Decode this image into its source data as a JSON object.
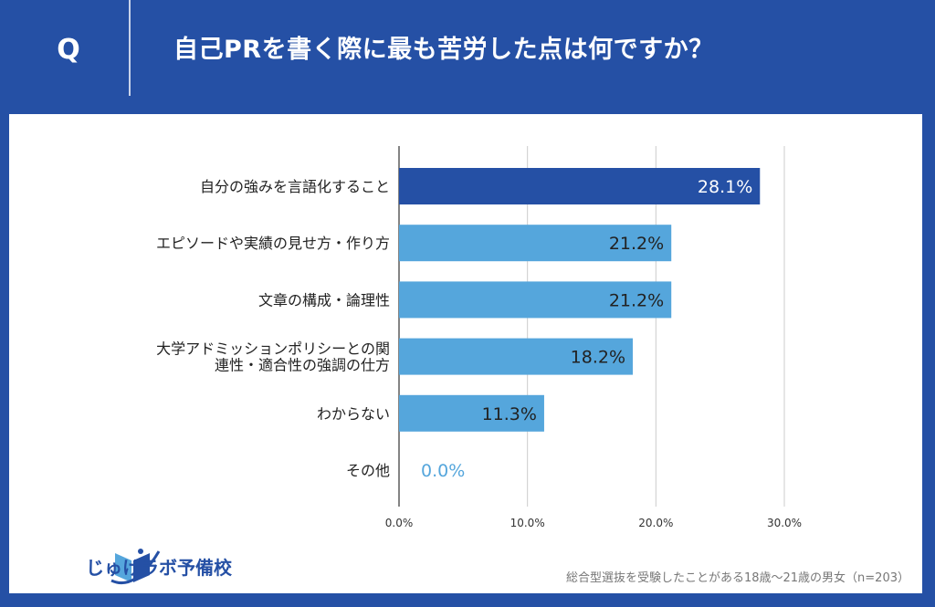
{
  "header": {
    "q_label": "Q",
    "question": "自己PRを書く際に最も苦労した点は何ですか？"
  },
  "chart_data": {
    "type": "bar",
    "orientation": "horizontal",
    "categories": [
      "自分の強みを言語化すること",
      "エピソードや実績の見せ方・作り方",
      "文章の構成・論理性",
      "大学アドミッションポリシーとの関連性・適合性の強調の仕方",
      "わからない",
      "その他"
    ],
    "category_lines": [
      [
        "自分の強みを言語化すること"
      ],
      [
        "エピソードや実績の見せ方・作り方"
      ],
      [
        "文章の構成・論理性"
      ],
      [
        "大学アドミッションポリシーとの関",
        "連性・適合性の強調の仕方"
      ],
      [
        "わからない"
      ],
      [
        "その他"
      ]
    ],
    "values": [
      28.1,
      21.2,
      21.2,
      18.2,
      11.3,
      0.0
    ],
    "data_labels": [
      "28.1%",
      "21.2%",
      "21.2%",
      "18.2%",
      "11.3%",
      "0.0%"
    ],
    "xlim": [
      0,
      30
    ],
    "ticks": [
      "0.0%",
      "10.0%",
      "20.0%",
      "30.0%"
    ],
    "tick_values": [
      0,
      10,
      20,
      30
    ],
    "grid": true,
    "colors": {
      "highlight": "#2550a5",
      "bar": "#55a6dc",
      "label_on_dark": "#ffffff",
      "label_on_light": "#222222",
      "zero_label": "#55a6dc"
    }
  },
  "footer": {
    "logo_text": "じゅけラボ予備校",
    "note": "総合型選抜を受験したことがある18歳〜21歳の男女（n=203）"
  }
}
